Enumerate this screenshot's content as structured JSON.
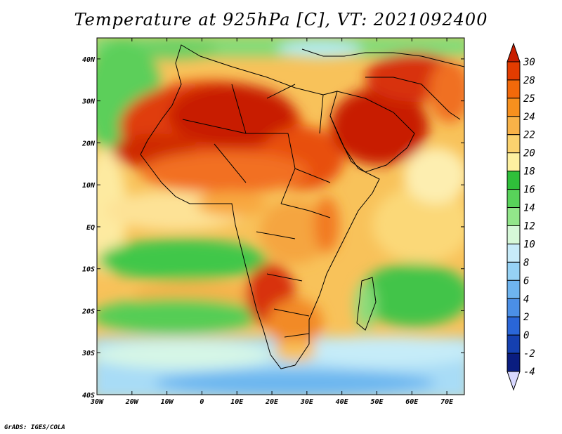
{
  "title": "Temperature at 925hPa [C], VT: 2021092400",
  "credit": "GrADS: IGES/COLA",
  "chart_data": {
    "type": "heatmap",
    "variable": "Temperature at 925hPa",
    "units": "C",
    "valid_time": "2021092400",
    "lon_range": [
      -30,
      75
    ],
    "lat_range": [
      -40,
      45
    ],
    "x_ticks": [
      "30W",
      "20W",
      "10W",
      "0",
      "10E",
      "20E",
      "30E",
      "40E",
      "50E",
      "60E",
      "70E"
    ],
    "y_ticks": [
      "40N",
      "30N",
      "20N",
      "10N",
      "EQ",
      "10S",
      "20S",
      "30S",
      "40S"
    ],
    "colorbar": {
      "labels": [
        "30",
        "28",
        "25",
        "24",
        "22",
        "20",
        "18",
        "16",
        "14",
        "12",
        "10",
        "8",
        "6",
        "4",
        "2",
        "0",
        "-2",
        "-4"
      ],
      "colors": [
        "#c81e00",
        "#e33c00",
        "#f2690a",
        "#f7901e",
        "#f8b248",
        "#fbd26e",
        "#fdf0a0",
        "#2fbf3a",
        "#58d35a",
        "#92e68a",
        "#d6f8d8",
        "#c7ebf9",
        "#96d2f5",
        "#6eb4ef",
        "#4b8fe6",
        "#2a66d8",
        "#1540b0",
        "#0a1d80",
        "#d8d8ff"
      ]
    }
  }
}
